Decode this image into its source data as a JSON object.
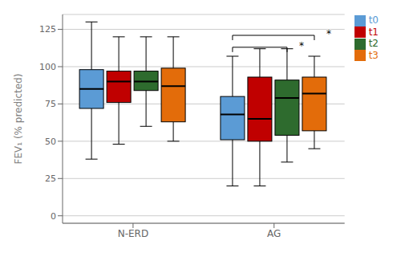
{
  "chart_data": {
    "type": "box",
    "title": "",
    "ylabel": "FEV₁ (% predicted)",
    "categories": [
      "N-ERD",
      "AG"
    ],
    "ylim": [
      -5,
      135
    ],
    "yticks": [
      0,
      25,
      50,
      75,
      100,
      125
    ],
    "grid": true,
    "legend": "upper right",
    "series": [
      {
        "name": "t0",
        "color": "#5B9BD5",
        "values": [
          {
            "q1": 72,
            "median": 85,
            "q3": 98,
            "whislo": 38,
            "whishi": 130
          },
          {
            "q1": 51,
            "median": 68,
            "q3": 80,
            "whislo": 20,
            "whishi": 107
          }
        ]
      },
      {
        "name": "t1",
        "color": "#C00000",
        "values": [
          {
            "q1": 76,
            "median": 90,
            "q3": 97,
            "whislo": 48,
            "whishi": 120
          },
          {
            "q1": 50,
            "median": 65,
            "q3": 93,
            "whislo": 20,
            "whishi": 112
          }
        ]
      },
      {
        "name": "t2",
        "color": "#2E6B2E",
        "values": [
          {
            "q1": 84,
            "median": 90,
            "q3": 97,
            "whislo": 60,
            "whishi": 120
          },
          {
            "q1": 54,
            "median": 79,
            "q3": 91,
            "whislo": 36,
            "whishi": 112
          }
        ]
      },
      {
        "name": "t3",
        "color": "#E36C0A",
        "values": [
          {
            "q1": 63,
            "median": 87,
            "q3": 99,
            "whislo": 50,
            "whishi": 120
          },
          {
            "q1": 57,
            "median": 82,
            "q3": 93,
            "whislo": 45,
            "whishi": 107
          }
        ]
      }
    ],
    "annotations": [
      {
        "text": "*",
        "category": "AG",
        "from": "t0",
        "to": "t2",
        "y": 113
      },
      {
        "text": "*",
        "category": "AG",
        "from": "t0",
        "to": "t3",
        "y": 121
      }
    ]
  }
}
